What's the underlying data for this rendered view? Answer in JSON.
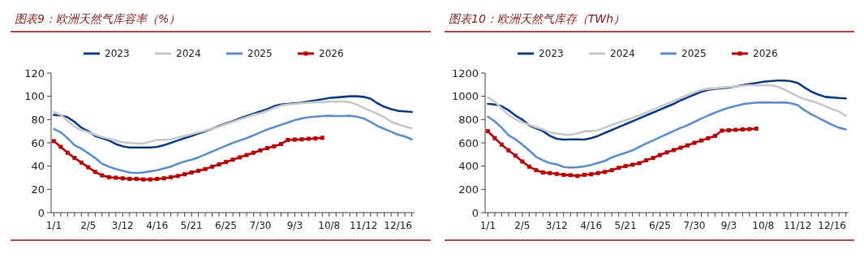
{
  "chart_data": [
    {
      "type": "line",
      "title": "图表9：欧洲天然气库容率（%）",
      "legend": "top",
      "grid": false,
      "ylim": [
        0,
        120
      ],
      "yticks": [
        0,
        20,
        40,
        60,
        80,
        100,
        120
      ],
      "categories": [
        "1/1",
        null,
        null,
        null,
        null,
        "2/5",
        null,
        null,
        null,
        null,
        "3/12",
        null,
        null,
        null,
        null,
        "4/16",
        null,
        null,
        null,
        null,
        "5/21",
        null,
        null,
        null,
        null,
        "6/25",
        null,
        null,
        null,
        null,
        "7/30",
        null,
        null,
        null,
        null,
        "9/3",
        null,
        null,
        null,
        null,
        "10/8",
        null,
        null,
        null,
        null,
        "11/12",
        null,
        null,
        null,
        null,
        "12/16",
        null,
        null
      ],
      "series": [
        {
          "name": "2023",
          "color": "#0d3f8f",
          "marker": "none",
          "values": [
            84,
            83.5,
            82,
            78,
            73,
            70,
            66,
            64,
            62,
            59,
            57,
            56,
            56,
            56,
            56,
            56.5,
            58,
            60,
            62,
            64,
            66,
            68,
            70,
            72,
            74.5,
            76.5,
            78.5,
            81,
            83,
            85,
            87,
            89,
            91.5,
            93,
            93.5,
            94,
            94.5,
            95.5,
            96.5,
            97.5,
            98.5,
            99,
            99.5,
            100,
            100,
            99.5,
            98,
            94,
            91,
            89,
            87.5,
            87,
            86.5
          ]
        },
        {
          "name": "2024",
          "color": "#c8c8c8",
          "marker": "none",
          "values": [
            86.5,
            84,
            79,
            74,
            71,
            69,
            67,
            65,
            63.5,
            62,
            60.5,
            60,
            59.5,
            59.5,
            61,
            62.5,
            62.5,
            63,
            64.5,
            66,
            67.5,
            69,
            70.5,
            72,
            74,
            76,
            78,
            80,
            82,
            84,
            85.5,
            87.5,
            90,
            92,
            93,
            93.5,
            94,
            94.5,
            95,
            95,
            95.5,
            95.5,
            95.5,
            95,
            93,
            90,
            87.5,
            85,
            82,
            78,
            76,
            74,
            72.5
          ]
        },
        {
          "name": "2025",
          "color": "#5b8fd6",
          "marker": "none",
          "values": [
            72,
            69,
            64,
            58,
            55,
            51,
            47,
            42,
            39.5,
            37.5,
            36,
            34.5,
            34,
            34.5,
            35.5,
            36.5,
            38,
            39.5,
            42,
            44,
            45.5,
            47.5,
            50,
            52.5,
            55,
            57.5,
            60,
            62,
            64,
            66.5,
            69,
            71.5,
            73.5,
            75.5,
            77.5,
            79.5,
            81,
            82,
            82.5,
            83,
            83.3,
            83,
            83,
            83.3,
            82.5,
            81,
            78,
            74.5,
            72,
            69.5,
            67,
            65.5,
            63
          ]
        },
        {
          "name": "2026",
          "color": "#c00000",
          "marker": "square",
          "values": [
            61.5,
            56.5,
            51.5,
            47,
            43,
            39,
            35,
            32,
            30.5,
            30,
            29.5,
            29,
            29,
            28.5,
            28.5,
            29,
            29.5,
            30.5,
            31.5,
            33,
            34.5,
            36,
            37.5,
            39.5,
            41.5,
            43.5,
            45.5,
            47.5,
            49.5,
            51.5,
            53.5,
            55.5,
            57,
            59,
            62.5,
            62.8,
            63,
            63.5,
            63.8,
            64.3,
            null,
            null,
            null,
            null,
            null,
            null,
            null,
            null,
            null,
            null,
            null,
            null,
            null
          ]
        }
      ]
    },
    {
      "type": "line",
      "title": "图表10：欧洲天然气库存（TWh）",
      "legend": "top",
      "grid": false,
      "ylim": [
        0,
        1200
      ],
      "yticks": [
        0,
        200,
        400,
        600,
        800,
        1000,
        1200
      ],
      "categories": [
        "1/1",
        null,
        null,
        null,
        null,
        "2/5",
        null,
        null,
        null,
        null,
        "3/12",
        null,
        null,
        null,
        null,
        "4/16",
        null,
        null,
        null,
        null,
        "5/21",
        null,
        null,
        null,
        null,
        "6/25",
        null,
        null,
        null,
        null,
        "7/30",
        null,
        null,
        null,
        null,
        "9/3",
        null,
        null,
        null,
        null,
        "10/8",
        null,
        null,
        null,
        null,
        "11/12",
        null,
        null,
        null,
        null,
        "12/16",
        null,
        null
      ],
      "series": [
        {
          "name": "2023",
          "color": "#0d3f8f",
          "marker": "none",
          "values": [
            935,
            930,
            915,
            880,
            835,
            800,
            750,
            725,
            700,
            660,
            635,
            628,
            630,
            630,
            628,
            640,
            660,
            685,
            710,
            735,
            760,
            785,
            810,
            835,
            860,
            885,
            910,
            935,
            965,
            990,
            1015,
            1040,
            1055,
            1065,
            1070,
            1075,
            1085,
            1095,
            1105,
            1115,
            1125,
            1130,
            1135,
            1135,
            1130,
            1115,
            1075,
            1040,
            1015,
            995,
            990,
            985,
            982
          ]
        },
        {
          "name": "2024",
          "color": "#c8c8c8",
          "marker": "none",
          "values": [
            990,
            955,
            895,
            840,
            805,
            775,
            755,
            735,
            715,
            690,
            680,
            672,
            668,
            680,
            700,
            700,
            710,
            730,
            755,
            775,
            795,
            815,
            835,
            860,
            885,
            910,
            935,
            960,
            985,
            1010,
            1035,
            1055,
            1065,
            1070,
            1075,
            1080,
            1085,
            1090,
            1095,
            1095,
            1095,
            1095,
            1085,
            1060,
            1030,
            1000,
            975,
            960,
            940,
            915,
            890,
            870,
            830
          ]
        },
        {
          "name": "2025",
          "color": "#5b8fd6",
          "marker": "none",
          "values": [
            825,
            785,
            730,
            665,
            630,
            585,
            535,
            480,
            450,
            425,
            415,
            392,
            387,
            390,
            398,
            410,
            428,
            445,
            475,
            495,
            515,
            535,
            565,
            595,
            620,
            648,
            675,
            702,
            728,
            752,
            780,
            808,
            835,
            860,
            882,
            902,
            918,
            932,
            940,
            945,
            948,
            946,
            945,
            948,
            940,
            925,
            880,
            845,
            815,
            785,
            755,
            730,
            715
          ]
        },
        {
          "name": "2026",
          "color": "#c00000",
          "marker": "square",
          "values": [
            700,
            640,
            585,
            535,
            490,
            440,
            395,
            365,
            345,
            340,
            333,
            325,
            322,
            315,
            325,
            330,
            340,
            350,
            365,
            385,
            400,
            412,
            425,
            450,
            470,
            495,
            518,
            538,
            558,
            578,
            600,
            620,
            640,
            660,
            705,
            708,
            712,
            715,
            718,
            722,
            null,
            null,
            null,
            null,
            null,
            null,
            null,
            null,
            null,
            null,
            null,
            null,
            null
          ]
        }
      ]
    }
  ]
}
